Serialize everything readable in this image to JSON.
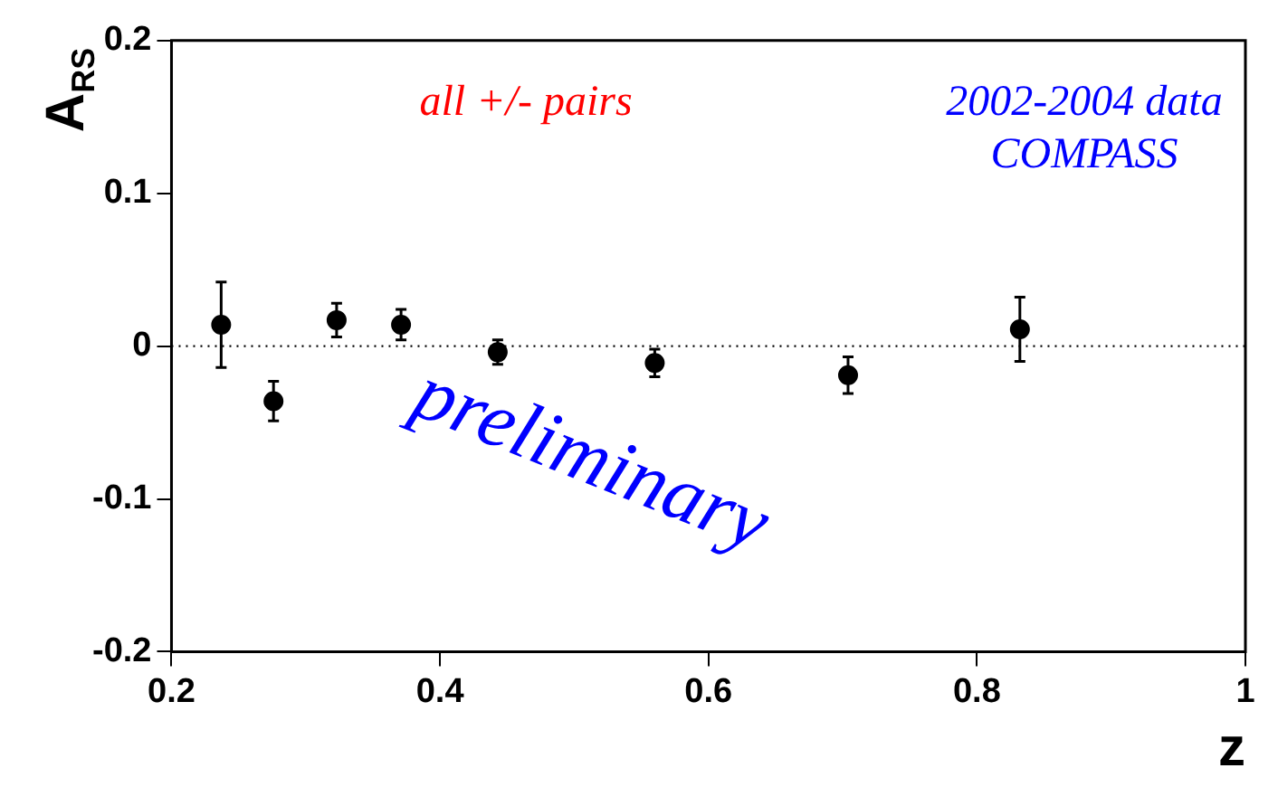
{
  "chart_data": {
    "type": "scatter",
    "xlabel": "z",
    "ylabel": "A$_{RS}$",
    "x": [
      0.237,
      0.276,
      0.323,
      0.371,
      0.443,
      0.56,
      0.704,
      0.832
    ],
    "series": [
      {
        "color": "#000000",
        "values": [
          0.014,
          -0.036,
          0.017,
          0.014,
          -0.004,
          -0.011,
          -0.019,
          0.011
        ],
        "errors": [
          0.028,
          0.013,
          0.011,
          0.01,
          0.008,
          0.009,
          0.012,
          0.021
        ]
      }
    ],
    "xlim": [
      0.2,
      1
    ],
    "xticks": [
      0.2,
      0.4,
      0.6,
      0.8,
      1
    ],
    "ylim": [
      -0.2,
      0.2
    ],
    "yticks": [
      -0.2,
      -0.1,
      0,
      0.1,
      0.2
    ],
    "ref_lines": [
      {
        "axis": "y",
        "value": 0,
        "line_style": "dotted",
        "color": "#000000"
      }
    ],
    "annotations": [
      "all +/- pairs",
      "2002-2004 data",
      "COMPASS",
      "preliminary"
    ],
    "marker": "circle",
    "grid": false,
    "legend": false
  }
}
